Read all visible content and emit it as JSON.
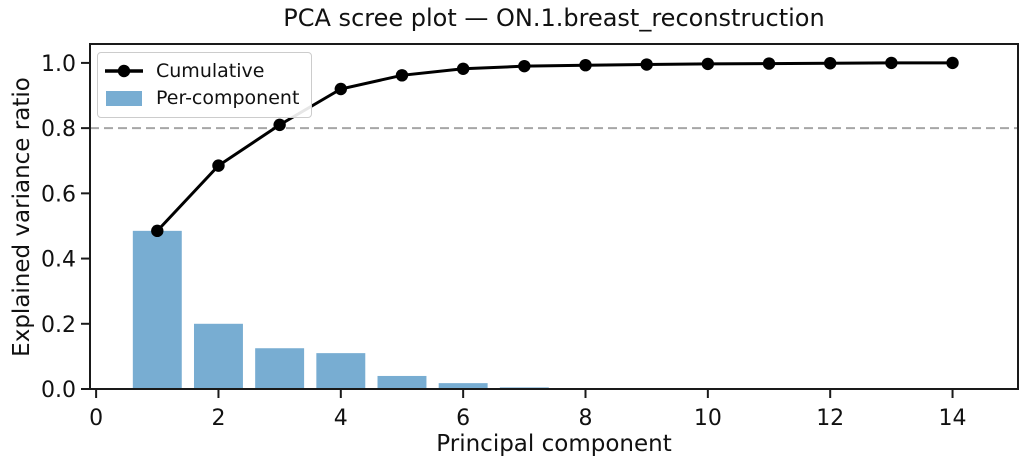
{
  "chart_data": {
    "type": "bar+line",
    "title": "PCA scree plot — ON.1.breast_reconstruction",
    "xlabel": "Principal component",
    "ylabel": "Explained variance ratio",
    "x": [
      1,
      2,
      3,
      4,
      5,
      6,
      7,
      8,
      9,
      10,
      11,
      12,
      13,
      14
    ],
    "series": [
      {
        "name": "Cumulative",
        "type": "line",
        "color": "#000000",
        "marker": "circle",
        "values": [
          0.485,
          0.685,
          0.81,
          0.92,
          0.962,
          0.982,
          0.99,
          0.993,
          0.995,
          0.997,
          0.998,
          0.999,
          1.0,
          1.0
        ]
      },
      {
        "name": "Per-component",
        "type": "bar",
        "color": "#78ADD2",
        "values": [
          0.485,
          0.2,
          0.125,
          0.11,
          0.04,
          0.018,
          0.005,
          0.003,
          0.002,
          0.002,
          0.001,
          0.001,
          0.001,
          0.001
        ]
      }
    ],
    "threshold_line": {
      "y": 0.8,
      "style": "dashed",
      "color": "#a6a6a6"
    },
    "x_ticks": [
      0,
      2,
      4,
      6,
      8,
      10,
      12,
      14
    ],
    "x_tick_labels": [
      "0",
      "2",
      "4",
      "6",
      "8",
      "10",
      "12",
      "14"
    ],
    "y_ticks": [
      0.0,
      0.2,
      0.4,
      0.6,
      0.8,
      1.0
    ],
    "y_tick_labels": [
      "0.0",
      "0.2",
      "0.4",
      "0.6",
      "0.8",
      "1.0"
    ],
    "xlim": [
      -0.1,
      15.07
    ],
    "ylim": [
      0,
      1.058
    ],
    "bar_width": 0.8,
    "grid": false,
    "legend_position": "upper left",
    "spine_color": "#1a1a1a",
    "text_color": "#111111"
  }
}
